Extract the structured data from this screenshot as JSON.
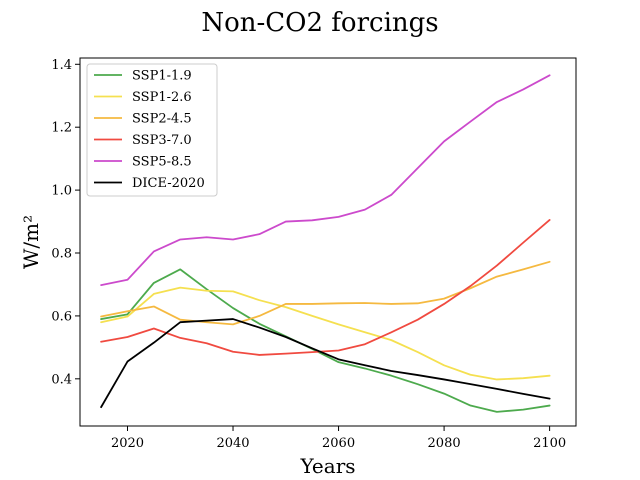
{
  "chart_data": {
    "type": "line",
    "title": "Non-CO2 forcings",
    "xlabel": "Years",
    "ylabel": "W/m²",
    "xlim": [
      2011,
      2105
    ],
    "ylim": [
      0.25,
      1.42
    ],
    "x_ticks": [
      2020,
      2040,
      2060,
      2080,
      2100
    ],
    "y_ticks": [
      0.4,
      0.6,
      0.8,
      1.0,
      1.2,
      1.4
    ],
    "x_tick_labels": [
      "2020",
      "2040",
      "2060",
      "2080",
      "2100"
    ],
    "y_tick_labels": [
      "0.4",
      "0.6",
      "0.8",
      "1.0",
      "1.2",
      "1.4"
    ],
    "grid": false,
    "legend_position": "top-left",
    "series": [
      {
        "name": "SSP1-1.9",
        "color": "#4daa4d",
        "x": [
          2015,
          2020,
          2025,
          2030,
          2035,
          2040,
          2045,
          2050,
          2055,
          2060,
          2065,
          2070,
          2075,
          2080,
          2085,
          2090,
          2095,
          2100
        ],
        "y": [
          0.59,
          0.605,
          0.705,
          0.748,
          0.685,
          0.625,
          0.575,
          0.535,
          0.495,
          0.453,
          0.433,
          0.41,
          0.383,
          0.353,
          0.315,
          0.295,
          0.302,
          0.315
        ]
      },
      {
        "name": "SSP1-2.6",
        "color": "#f5e050",
        "x": [
          2015,
          2020,
          2025,
          2030,
          2035,
          2040,
          2045,
          2050,
          2055,
          2060,
          2065,
          2070,
          2075,
          2080,
          2085,
          2090,
          2095,
          2100
        ],
        "y": [
          0.58,
          0.598,
          0.67,
          0.69,
          0.68,
          0.678,
          0.65,
          0.628,
          0.6,
          0.573,
          0.548,
          0.523,
          0.485,
          0.443,
          0.413,
          0.398,
          0.402,
          0.41
        ]
      },
      {
        "name": "SSP2-4.5",
        "color": "#f5b940",
        "x": [
          2015,
          2020,
          2025,
          2030,
          2035,
          2040,
          2045,
          2050,
          2055,
          2060,
          2065,
          2070,
          2075,
          2080,
          2085,
          2090,
          2095,
          2100
        ],
        "y": [
          0.598,
          0.615,
          0.63,
          0.588,
          0.58,
          0.573,
          0.6,
          0.638,
          0.638,
          0.64,
          0.641,
          0.638,
          0.64,
          0.655,
          0.688,
          0.725,
          0.748,
          0.772
        ]
      },
      {
        "name": "SSP3-7.0",
        "color": "#f04a40",
        "x": [
          2015,
          2020,
          2025,
          2030,
          2035,
          2040,
          2045,
          2050,
          2055,
          2060,
          2065,
          2070,
          2075,
          2080,
          2085,
          2090,
          2095,
          2100
        ],
        "y": [
          0.518,
          0.533,
          0.56,
          0.53,
          0.513,
          0.486,
          0.476,
          0.48,
          0.485,
          0.49,
          0.51,
          0.548,
          0.588,
          0.638,
          0.695,
          0.76,
          0.833,
          0.905
        ]
      },
      {
        "name": "SSP5-8.5",
        "color": "#cc4acc",
        "x": [
          2015,
          2020,
          2025,
          2030,
          2035,
          2040,
          2045,
          2050,
          2055,
          2060,
          2065,
          2070,
          2075,
          2080,
          2085,
          2090,
          2095,
          2100
        ],
        "y": [
          0.698,
          0.715,
          0.805,
          0.843,
          0.85,
          0.843,
          0.86,
          0.9,
          0.904,
          0.915,
          0.938,
          0.985,
          1.07,
          1.155,
          1.218,
          1.28,
          1.32,
          1.365
        ]
      },
      {
        "name": "DICE-2020",
        "color": "#000000",
        "x": [
          2015,
          2020,
          2025,
          2030,
          2035,
          2040,
          2045,
          2050,
          2055,
          2060,
          2065,
          2070,
          2075,
          2080,
          2085,
          2090,
          2095,
          2100
        ],
        "y": [
          0.31,
          0.455,
          0.515,
          0.58,
          0.585,
          0.59,
          0.563,
          0.533,
          0.497,
          0.462,
          0.443,
          0.425,
          0.412,
          0.398,
          0.383,
          0.368,
          0.352,
          0.337
        ]
      }
    ]
  }
}
